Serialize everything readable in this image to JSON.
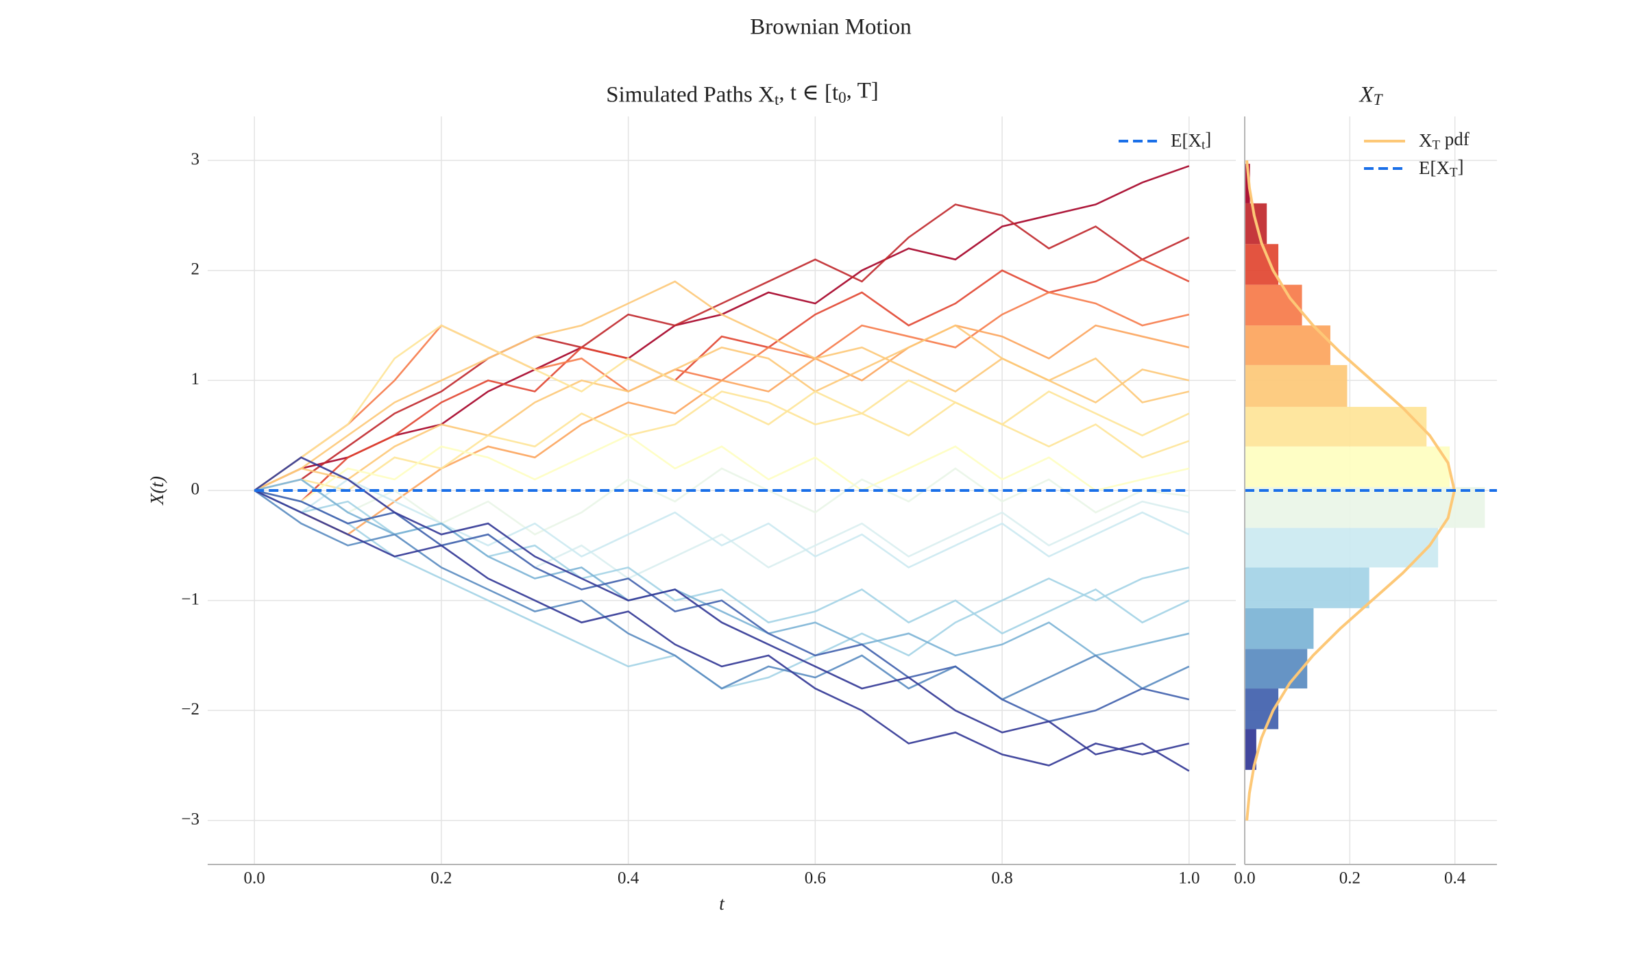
{
  "suptitle": "Brownian Motion",
  "chart_data": [
    {
      "type": "line",
      "title": "Simulated Paths X_t, t ∈ [t_0, T]",
      "xlabel": "t",
      "ylabel": "X(t)",
      "x": [
        0,
        0.05,
        0.1,
        0.15,
        0.2,
        0.25,
        0.3,
        0.35,
        0.4,
        0.45,
        0.5,
        0.55,
        0.6,
        0.65,
        0.7,
        0.75,
        0.8,
        0.85,
        0.9,
        0.95,
        1
      ],
      "xlim": [
        -0.05,
        1.05
      ],
      "xticks": [
        {
          "value": 0,
          "label": "0.0"
        },
        0.2,
        0.4,
        0.6,
        0.8,
        {
          "value": 1,
          "label": "1.0"
        }
      ],
      "ylim": [
        -3.4,
        3.4
      ],
      "yticks": [
        {
          "value": -3,
          "label": "−3"
        },
        {
          "value": -2,
          "label": "−2"
        },
        {
          "value": -1,
          "label": "−1"
        },
        0,
        1,
        2,
        3
      ],
      "grid": true,
      "legend": "upper right",
      "mean_line": {
        "name": "E[X_t]",
        "value": 0,
        "color": "#1a6fe8"
      },
      "series": [
        {
          "color": "#a50026",
          "values": [
            0,
            0.2,
            0.3,
            0.5,
            0.6,
            0.9,
            1.1,
            1.3,
            1.2,
            1.5,
            1.6,
            1.8,
            1.7,
            2.0,
            2.2,
            2.1,
            2.4,
            2.5,
            2.6,
            2.8,
            2.95
          ]
        },
        {
          "color": "#c0272b",
          "values": [
            0,
            0.1,
            0.4,
            0.7,
            0.9,
            1.2,
            1.4,
            1.3,
            1.6,
            1.5,
            1.7,
            1.9,
            2.1,
            1.9,
            2.3,
            2.6,
            2.5,
            2.2,
            2.4,
            2.1,
            2.3
          ]
        },
        {
          "color": "#e14530",
          "values": [
            0,
            -0.1,
            0.3,
            0.5,
            0.8,
            1.0,
            0.9,
            1.3,
            1.2,
            1.0,
            1.4,
            1.3,
            1.6,
            1.8,
            1.5,
            1.7,
            2.0,
            1.8,
            1.9,
            2.1,
            1.9
          ]
        },
        {
          "color": "#f67a49",
          "values": [
            0,
            0.3,
            0.6,
            1.0,
            1.5,
            1.3,
            1.1,
            1.2,
            0.9,
            1.1,
            1.0,
            1.3,
            1.2,
            1.5,
            1.4,
            1.3,
            1.6,
            1.8,
            1.7,
            1.5,
            1.6
          ]
        },
        {
          "color": "#fca45c",
          "values": [
            0,
            -0.2,
            -0.4,
            -0.1,
            0.2,
            0.4,
            0.3,
            0.6,
            0.8,
            0.7,
            1.0,
            0.9,
            1.2,
            1.0,
            1.3,
            1.5,
            1.4,
            1.2,
            1.5,
            1.4,
            1.3
          ]
        },
        {
          "color": "#fdc877",
          "values": [
            0,
            0.2,
            0.5,
            0.8,
            1.0,
            1.2,
            1.4,
            1.5,
            1.7,
            1.9,
            1.6,
            1.4,
            1.2,
            1.3,
            1.1,
            0.9,
            1.2,
            1.0,
            0.8,
            1.1,
            1.0
          ]
        },
        {
          "color": "#fdc877",
          "values": [
            0,
            0.2,
            0.1,
            0.4,
            0.6,
            0.5,
            0.8,
            1.0,
            0.9,
            1.1,
            1.3,
            1.2,
            0.9,
            1.1,
            1.3,
            1.5,
            1.2,
            1.0,
            1.2,
            0.8,
            0.9
          ]
        },
        {
          "color": "#fee497",
          "values": [
            0,
            0.1,
            0.0,
            0.3,
            0.2,
            0.5,
            0.4,
            0.7,
            0.5,
            0.6,
            0.9,
            0.8,
            0.6,
            0.7,
            1.0,
            0.8,
            0.6,
            0.9,
            0.7,
            0.5,
            0.7
          ]
        },
        {
          "color": "#fee497",
          "values": [
            0,
            0.3,
            0.6,
            1.2,
            1.5,
            1.3,
            1.1,
            0.9,
            1.2,
            1.0,
            0.8,
            0.6,
            0.9,
            0.7,
            0.5,
            0.8,
            0.6,
            0.4,
            0.6,
            0.3,
            0.45
          ]
        },
        {
          "color": "#fefec0",
          "values": [
            0,
            -0.1,
            0.2,
            0.1,
            0.4,
            0.3,
            0.1,
            0.3,
            0.5,
            0.2,
            0.4,
            0.1,
            0.3,
            0.0,
            0.2,
            0.4,
            0.1,
            0.3,
            0.0,
            0.1,
            0.2
          ]
        },
        {
          "color": "#e9f5e7",
          "values": [
            0,
            0.1,
            -0.2,
            0.0,
            -0.3,
            -0.1,
            -0.4,
            -0.2,
            0.1,
            -0.1,
            0.2,
            0.0,
            -0.2,
            0.1,
            -0.1,
            0.2,
            -0.1,
            0.1,
            -0.2,
            0.0,
            -0.05
          ]
        },
        {
          "color": "#d9eef0",
          "values": [
            0,
            -0.1,
            -0.3,
            -0.2,
            -0.5,
            -0.4,
            -0.7,
            -0.5,
            -0.8,
            -0.6,
            -0.4,
            -0.7,
            -0.5,
            -0.3,
            -0.6,
            -0.4,
            -0.2,
            -0.5,
            -0.3,
            -0.1,
            -0.2
          ]
        },
        {
          "color": "#cbe9f1",
          "values": [
            0,
            -0.2,
            0.1,
            -0.1,
            -0.3,
            -0.5,
            -0.3,
            -0.6,
            -0.4,
            -0.2,
            -0.5,
            -0.3,
            -0.6,
            -0.4,
            -0.7,
            -0.5,
            -0.3,
            -0.6,
            -0.4,
            -0.2,
            -0.4
          ]
        },
        {
          "color": "#a3d3e6",
          "values": [
            0,
            -0.1,
            -0.3,
            -0.6,
            -0.8,
            -1.0,
            -1.2,
            -1.4,
            -1.6,
            -1.5,
            -1.8,
            -1.7,
            -1.5,
            -1.3,
            -1.5,
            -1.2,
            -1.0,
            -0.8,
            -1.0,
            -0.8,
            -0.7
          ]
        },
        {
          "color": "#a3d3e6",
          "values": [
            0,
            -0.2,
            -0.1,
            -0.4,
            -0.3,
            -0.6,
            -0.5,
            -0.8,
            -0.7,
            -1.0,
            -0.9,
            -1.2,
            -1.1,
            -0.9,
            -1.2,
            -1.0,
            -1.3,
            -1.1,
            -0.9,
            -1.2,
            -1.0
          ]
        },
        {
          "color": "#7bb3d5",
          "values": [
            0,
            0.1,
            -0.2,
            -0.4,
            -0.3,
            -0.6,
            -0.8,
            -0.7,
            -1.0,
            -0.9,
            -1.1,
            -1.3,
            -1.2,
            -1.4,
            -1.3,
            -1.5,
            -1.4,
            -1.2,
            -1.5,
            -1.4,
            -1.3
          ]
        },
        {
          "color": "#598bc0",
          "values": [
            0,
            -0.3,
            -0.5,
            -0.4,
            -0.7,
            -0.9,
            -1.1,
            -1.0,
            -1.3,
            -1.5,
            -1.8,
            -1.6,
            -1.7,
            -1.5,
            -1.8,
            -1.6,
            -1.9,
            -1.7,
            -1.5,
            -1.8,
            -1.6
          ]
        },
        {
          "color": "#4060ad",
          "values": [
            0,
            -0.1,
            -0.3,
            -0.2,
            -0.5,
            -0.4,
            -0.7,
            -0.9,
            -0.8,
            -1.1,
            -1.0,
            -1.3,
            -1.5,
            -1.4,
            -1.7,
            -1.6,
            -1.9,
            -2.1,
            -2.0,
            -1.8,
            -1.9
          ]
        },
        {
          "color": "#313695",
          "values": [
            0,
            -0.2,
            -0.4,
            -0.6,
            -0.5,
            -0.8,
            -1.0,
            -1.2,
            -1.1,
            -1.4,
            -1.6,
            -1.5,
            -1.8,
            -2.0,
            -2.3,
            -2.2,
            -2.4,
            -2.5,
            -2.3,
            -2.4,
            -2.3
          ]
        },
        {
          "color": "#313695",
          "values": [
            0,
            0.3,
            0.1,
            -0.2,
            -0.4,
            -0.3,
            -0.6,
            -0.8,
            -1.0,
            -0.9,
            -1.2,
            -1.4,
            -1.6,
            -1.8,
            -1.7,
            -2.0,
            -2.2,
            -2.1,
            -2.4,
            -2.3,
            -2.55
          ]
        }
      ]
    },
    {
      "type": "histogram",
      "title": "X_T",
      "orientation": "horizontal",
      "sharey": true,
      "bins": [
        -2.54,
        -2.17,
        -1.8,
        -1.44,
        -1.07,
        -0.7,
        -0.34,
        0.03,
        0.4,
        0.76,
        1.14,
        1.5,
        1.87,
        2.24,
        2.61,
        2.97
      ],
      "values": [
        0.022,
        0.064,
        0.119,
        0.131,
        0.237,
        0.368,
        0.457,
        0.39,
        0.346,
        0.195,
        0.163,
        0.109,
        0.064,
        0.042,
        0.01
      ],
      "colors": [
        "#313695",
        "#4060ad",
        "#598bc0",
        "#7bb3d5",
        "#a3d3e6",
        "#cbe9f1",
        "#e9f5e7",
        "#fefec0",
        "#fee497",
        "#fdc877",
        "#fca45c",
        "#f67a49",
        "#e14530",
        "#c0272b",
        "#a50026"
      ],
      "xlim": [
        0,
        0.48
      ],
      "xticks": [
        {
          "value": 0,
          "label": "0.0"
        },
        0.2,
        0.4
      ],
      "grid": true,
      "legend": "upper right",
      "pdf": {
        "name": "X_T pdf",
        "color": "#fdc877",
        "x": [
          -3,
          -2.75,
          -2.5,
          -2.25,
          -2,
          -1.75,
          -1.5,
          -1.25,
          -1,
          -0.75,
          -0.5,
          -0.25,
          0,
          0.25,
          0.5,
          0.75,
          1,
          1.25,
          1.5,
          1.75,
          2,
          2.25,
          2.5,
          2.75,
          3
        ],
        "values": [
          0.004,
          0.009,
          0.018,
          0.032,
          0.054,
          0.086,
          0.13,
          0.183,
          0.242,
          0.301,
          0.352,
          0.387,
          0.399,
          0.387,
          0.352,
          0.301,
          0.242,
          0.183,
          0.13,
          0.086,
          0.054,
          0.032,
          0.018,
          0.009,
          0.004
        ]
      },
      "mean_line": {
        "name": "E[X_T]",
        "value": 0,
        "color": "#1a6fe8"
      }
    }
  ]
}
